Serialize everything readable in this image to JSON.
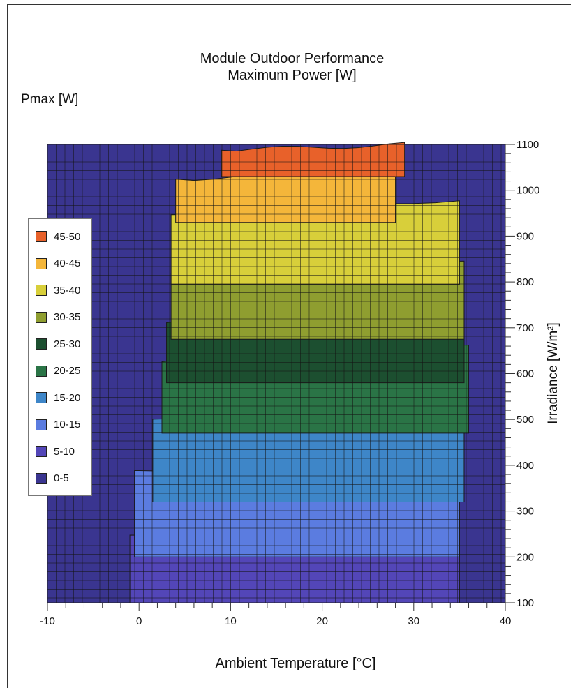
{
  "chart_data": {
    "type": "heatmap",
    "title": "Module Outdoor Performance",
    "subtitle": "Maximum Power [W]",
    "legend_title": "Pmax [W]",
    "xlabel": "Ambient Temperature [°C]",
    "ylabel": "Irradiance [W/m²]",
    "xlim": [
      -10,
      40
    ],
    "ylim": [
      100,
      1100
    ],
    "x_ticks": [
      -10,
      0,
      10,
      20,
      30,
      40
    ],
    "y_ticks": [
      100,
      200,
      300,
      400,
      500,
      600,
      700,
      800,
      900,
      1000,
      1100
    ],
    "grid": true,
    "legend_position": "left",
    "background_color": "#3a3590",
    "levels": [
      {
        "label": "45-50",
        "color": "#e8612a"
      },
      {
        "label": "40-45",
        "color": "#f4b63a"
      },
      {
        "label": "35-40",
        "color": "#d8cf3a"
      },
      {
        "label": "30-35",
        "color": "#8f9e30"
      },
      {
        "label": "25-30",
        "color": "#1c4f30"
      },
      {
        "label": "20-25",
        "color": "#2a7446"
      },
      {
        "label": "15-20",
        "color": "#3e86c8"
      },
      {
        "label": "10-15",
        "color": "#5b7ce0"
      },
      {
        "label": "5-10",
        "color": "#5346b8"
      },
      {
        "label": "0-5",
        "color": "#3a3590"
      }
    ],
    "bands": [
      {
        "level": "45-50",
        "y0": 1030,
        "y1": 1100,
        "xmin": 9,
        "xmax": 29
      },
      {
        "level": "40-45",
        "y0": 930,
        "y1": 1045,
        "xmin": 4,
        "xmax": 28
      },
      {
        "level": "35-40",
        "y0": 795,
        "y1": 980,
        "xmin": 3.5,
        "xmax": 35
      },
      {
        "level": "30-35",
        "y0": 675,
        "y1": 850,
        "xmin": 3.5,
        "xmax": 35.5
      },
      {
        "level": "25-30",
        "y0": 580,
        "y1": 740,
        "xmin": 3,
        "xmax": 35.5
      },
      {
        "level": "20-25",
        "y0": 470,
        "y1": 660,
        "xmin": 2.5,
        "xmax": 36
      },
      {
        "level": "15-20",
        "y0": 320,
        "y1": 540,
        "xmin": 1.5,
        "xmax": 35.5
      },
      {
        "level": "10-15",
        "y0": 200,
        "y1": 430,
        "xmin": -0.5,
        "xmax": 35
      },
      {
        "level": "5-10",
        "y0": 100,
        "y1": 280,
        "xmin": -1,
        "xmax": 35
      }
    ]
  }
}
